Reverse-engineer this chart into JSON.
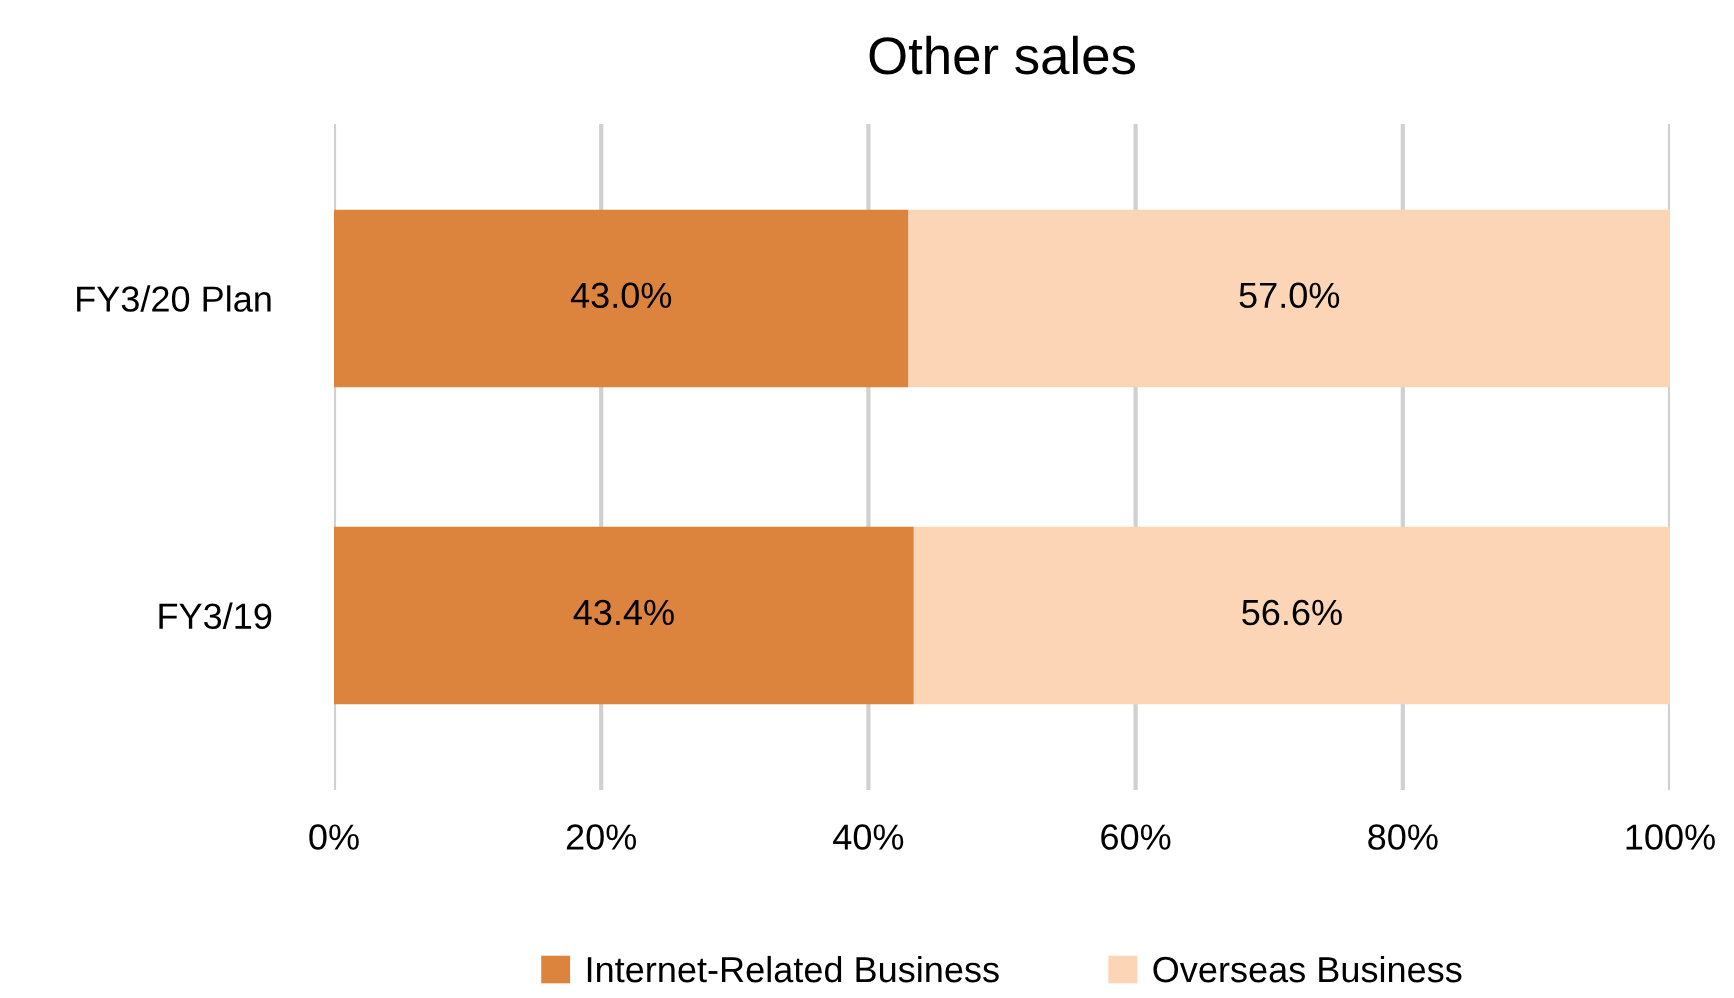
{
  "chart_data": {
    "type": "bar",
    "orientation": "horizontal",
    "stacked": true,
    "title": "Other sales",
    "categories": [
      "FY3/20 Plan",
      "FY3/19"
    ],
    "series": [
      {
        "name": "Internet-Related Business",
        "color": "#dc843e",
        "values": [
          43.0,
          43.4
        ],
        "value_labels": [
          "43.0%",
          "43.4%"
        ]
      },
      {
        "name": "Overseas Business",
        "color": "#fbd5b5",
        "values": [
          57.0,
          56.6
        ],
        "value_labels": [
          "57.0%",
          "56.6%"
        ]
      }
    ],
    "xlim": [
      0,
      100
    ],
    "xticks": [
      {
        "value": 0,
        "label": "0%"
      },
      {
        "value": 20,
        "label": "20%"
      },
      {
        "value": 40,
        "label": "40%"
      },
      {
        "value": 60,
        "label": "60%"
      },
      {
        "value": 80,
        "label": "80%"
      },
      {
        "value": 100,
        "label": "100%"
      }
    ],
    "grid": "x",
    "legend": "bottom"
  }
}
